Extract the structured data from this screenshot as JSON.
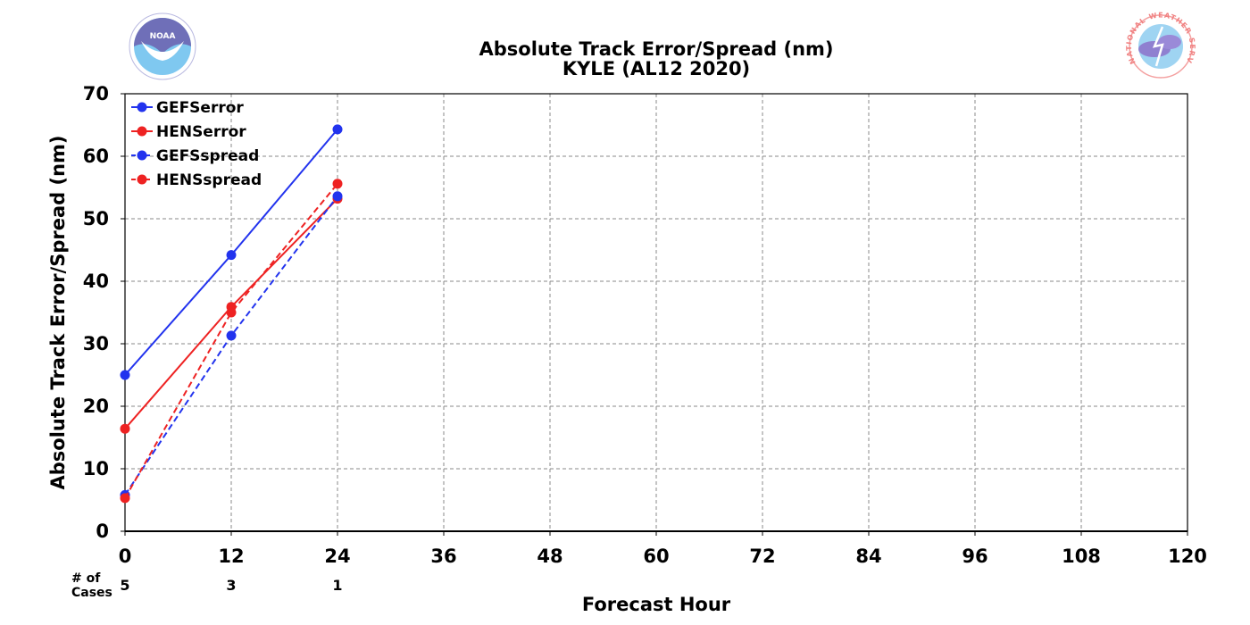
{
  "chart_data": {
    "type": "line",
    "title": "Absolute Track Error/Spread (nm)",
    "subtitle": "KYLE (AL12 2020)",
    "xlabel": "Forecast Hour",
    "ylabel": "Absolute Track Error/Spread (nm)",
    "xlim": [
      0,
      120
    ],
    "ylim": [
      0,
      70
    ],
    "x_ticks": [
      "0",
      "12",
      "24",
      "36",
      "48",
      "60",
      "72",
      "84",
      "96",
      "108",
      "120"
    ],
    "y_ticks": [
      "0",
      "10",
      "20",
      "30",
      "40",
      "50",
      "60",
      "70"
    ],
    "grid": true,
    "legend_position": "top-left",
    "series": [
      {
        "name": "GEFSerror",
        "color": "#2233ee",
        "style": "solid",
        "x": [
          0,
          12,
          24
        ],
        "values": [
          25.0,
          44.2,
          64.3
        ]
      },
      {
        "name": "HENSerror",
        "color": "#ee2222",
        "style": "solid",
        "x": [
          0,
          12,
          24
        ],
        "values": [
          16.4,
          35.9,
          53.2
        ]
      },
      {
        "name": "GEFSspread",
        "color": "#2233ee",
        "style": "dashed",
        "x": [
          0,
          12,
          24
        ],
        "values": [
          5.8,
          31.3,
          53.6
        ]
      },
      {
        "name": "HENSspread",
        "color": "#ee2222",
        "style": "dashed",
        "x": [
          0,
          12,
          24
        ],
        "values": [
          5.3,
          35.0,
          55.6
        ]
      }
    ],
    "cases": {
      "label_line1": "# of",
      "label_line2": "Cases",
      "x": [
        0,
        12,
        24
      ],
      "values": [
        "5",
        "3",
        "1"
      ]
    }
  },
  "logos": {
    "left": {
      "icon": "noaa-logo-icon",
      "text": "NOAA"
    },
    "right": {
      "icon": "nws-logo-icon",
      "text": "NATIONAL WEATHER SERVICE"
    }
  }
}
